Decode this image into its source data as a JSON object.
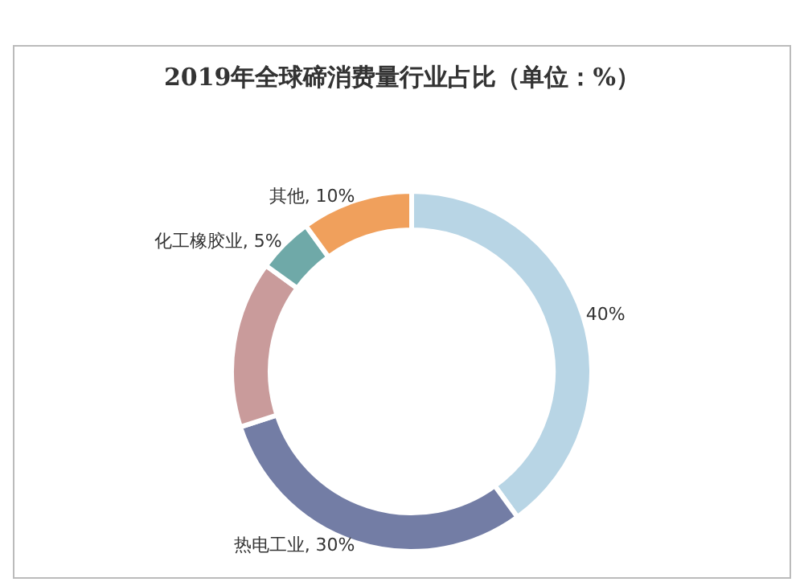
{
  "chart_data": {
    "type": "donut",
    "title": "2019年全球碲消费量行业占比（单位：%）",
    "categories": [
      null,
      "热电工业",
      null,
      "化工橡胶业",
      "其他"
    ],
    "values": [
      40,
      30,
      15,
      5,
      10
    ],
    "colors": [
      "#b8d5e5",
      "#737da5",
      "#c99b9b",
      "#6fa9a8",
      "#f0a05c"
    ],
    "value_labels": [
      "40%",
      "30%",
      null,
      "5%",
      "10%"
    ]
  }
}
